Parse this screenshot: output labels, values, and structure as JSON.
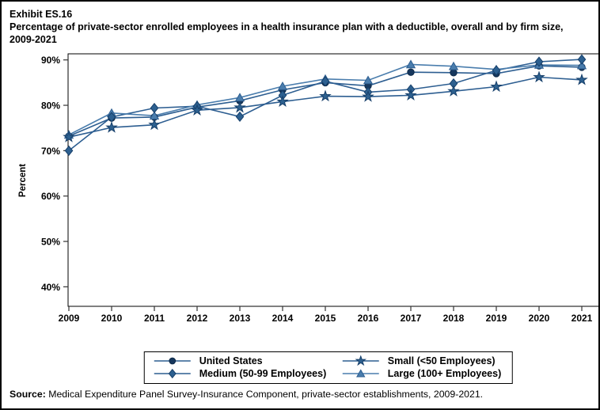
{
  "header": {
    "exhibit": "Exhibit ES.16",
    "title": "Percentage of private-sector enrolled employees in a health insurance plan with a deductible, overall and by firm size, 2009-2021"
  },
  "source": {
    "label": "Source:",
    "text": " Medical Expenditure Panel Survey-Insurance Component, private-sector establishments, 2009-2021."
  },
  "chart_data": {
    "type": "line",
    "title": "Percentage of private-sector enrolled employees in a health insurance plan with a deductible, overall and by firm size, 2009-2021",
    "xlabel": "",
    "ylabel": "Percent",
    "x": [
      2009,
      2010,
      2011,
      2012,
      2013,
      2014,
      2015,
      2016,
      2017,
      2018,
      2019,
      2020,
      2021
    ],
    "x_labels": [
      "2009",
      "2010",
      "2011",
      "2012",
      "2013",
      "2014",
      "2015",
      "2016",
      "2017",
      "2018",
      "2019",
      "2020",
      "2021"
    ],
    "yticks": [
      40,
      50,
      60,
      70,
      80,
      90
    ],
    "ytick_labels": [
      "40%",
      "50%",
      "60%",
      "70%",
      "80%",
      "90%"
    ],
    "ylim": [
      40,
      90
    ],
    "grid": false,
    "legend_position": "bottom",
    "series": [
      {
        "name": "United States",
        "marker": "circle",
        "color": "#16375D",
        "line_color": "#2D5E91",
        "values": [
          73.2,
          77.2,
          77.4,
          79.6,
          81.0,
          83.4,
          85.0,
          84.3,
          87.3,
          87.2,
          87.0,
          88.7,
          88.4
        ]
      },
      {
        "name": "Small (<50 Employees)",
        "marker": "star",
        "color": "#2D608F",
        "line_color": "#2D5E91",
        "values": [
          73.0,
          75.1,
          75.7,
          78.9,
          79.5,
          80.8,
          82.0,
          81.9,
          82.2,
          83.1,
          84.1,
          86.2,
          85.6
        ]
      },
      {
        "name": "Medium (50-99 Employees)",
        "marker": "diamond",
        "color": "#2D6090",
        "line_color": "#2D5E91",
        "values": [
          70.0,
          77.4,
          79.4,
          79.8,
          77.5,
          82.2,
          85.3,
          82.9,
          83.5,
          84.8,
          87.7,
          89.6,
          90.1
        ]
      },
      {
        "name": "Large (100+ Employees)",
        "marker": "triangle",
        "color": "#4A7DAD",
        "line_color": "#4A7DAD",
        "values": [
          73.5,
          78.3,
          77.7,
          80.1,
          81.7,
          84.2,
          85.8,
          85.5,
          89.0,
          88.6,
          87.9,
          88.9,
          88.8
        ]
      }
    ]
  }
}
